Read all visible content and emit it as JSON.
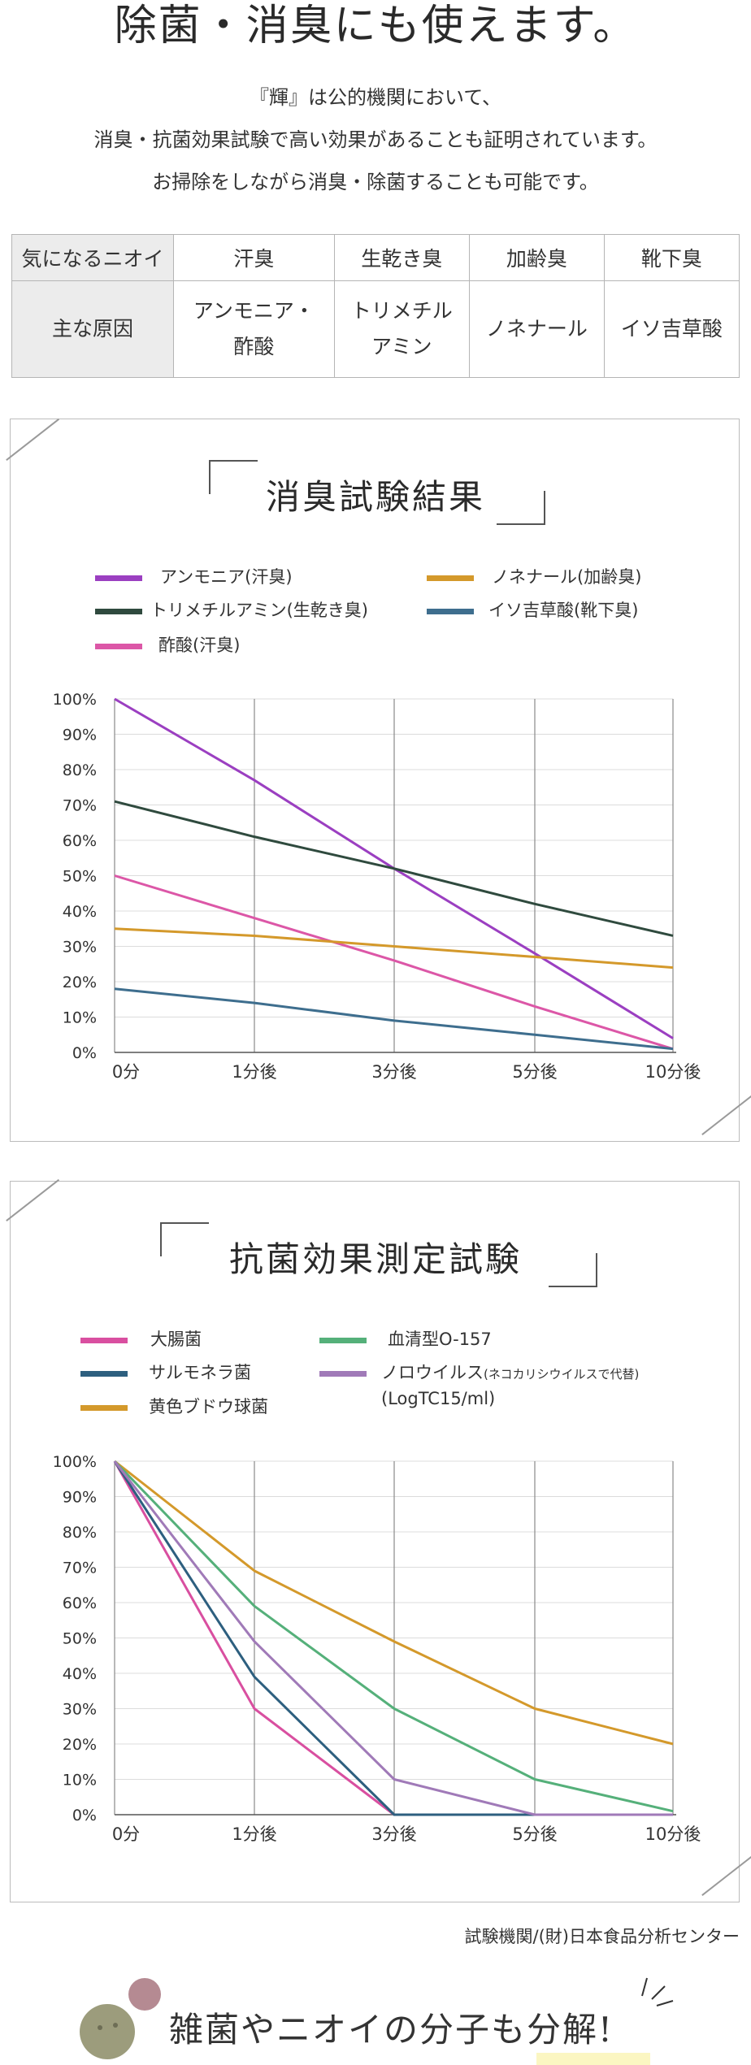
{
  "heading": "除菌・消臭にも使えます。",
  "intro": [
    "『輝』は公的機関において、",
    "消臭・抗菌効果試験で高い効果があることも証明されています。",
    "お掃除をしながら消臭・除菌することも可能です。"
  ],
  "odor_table": {
    "header": [
      "気になるニオイ",
      "汗臭",
      "生乾き臭",
      "加齢臭",
      "靴下臭"
    ],
    "row_label": "主な原因",
    "causes": [
      [
        "アンモニア・",
        "酢酸"
      ],
      [
        "トリメチル",
        "アミン"
      ],
      [
        "ノネナール"
      ],
      [
        "イソ吉草酸"
      ]
    ]
  },
  "chart_data": [
    {
      "type": "line",
      "title": "消臭試験結果",
      "categories": [
        "0分",
        "1分後",
        "3分後",
        "5分後",
        "10分後"
      ],
      "ylim": [
        0,
        100
      ],
      "yticks": [
        "100%",
        "90%",
        "80%",
        "70%",
        "60%",
        "50%",
        "40%",
        "30%",
        "20%",
        "10%",
        "0%"
      ],
      "series": [
        {
          "name": "アンモニア(汗臭)",
          "color": "#9b3fc1",
          "values": [
            100,
            77,
            52,
            28,
            4
          ]
        },
        {
          "name": "トリメチルアミン(生乾き臭)",
          "color": "#2f4a3e",
          "values": [
            71,
            61,
            52,
            42,
            33
          ]
        },
        {
          "name": "酢酸(汗臭)",
          "color": "#dc57a7",
          "values": [
            50,
            38,
            26,
            13,
            1
          ]
        },
        {
          "name": "ノネナール(加齢臭)",
          "color": "#d4992b",
          "values": [
            35,
            33,
            30,
            27,
            24
          ]
        },
        {
          "name": "イソ吉草酸(靴下臭)",
          "color": "#3e6e8e",
          "values": [
            18,
            14,
            9,
            5,
            1
          ]
        }
      ]
    },
    {
      "type": "line",
      "title": "抗菌効果測定試験",
      "categories": [
        "0分",
        "1分後",
        "3分後",
        "5分後",
        "10分後"
      ],
      "ylim": [
        0,
        100
      ],
      "yticks": [
        "100%",
        "90%",
        "80%",
        "70%",
        "60%",
        "50%",
        "40%",
        "30%",
        "20%",
        "10%",
        "0%"
      ],
      "series": [
        {
          "name": "大腸菌",
          "color": "#d94fa0",
          "values": [
            100,
            30,
            0,
            0,
            0
          ]
        },
        {
          "name": "サルモネラ菌",
          "color": "#2d5f7f",
          "values": [
            100,
            39,
            0,
            0,
            0
          ]
        },
        {
          "name": "黄色ブドウ球菌",
          "color": "#d4992b",
          "values": [
            100,
            69,
            49,
            30,
            20
          ]
        },
        {
          "name": "血清型O-157",
          "color": "#55b07a",
          "values": [
            100,
            59,
            30,
            10,
            1
          ]
        },
        {
          "name": "ノロウイルス",
          "name_note": "(ネコカリシウイルスで代替)",
          "name_note2": "(LogTC15/ml)",
          "color": "#a07ab8",
          "values": [
            100,
            49,
            10,
            0,
            0
          ]
        }
      ]
    }
  ],
  "credit": "試験機関/(財)日本食品分析センター",
  "banner": "雑菌やニオイの分子も分解!"
}
